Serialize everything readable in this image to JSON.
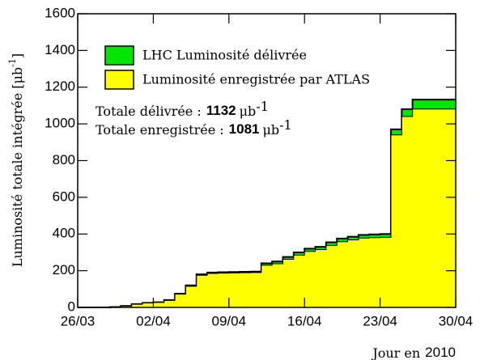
{
  "chart_data": {
    "type": "step-area",
    "ylabel": "Luminosité totale intégrée [μb",
    "ylabel_sup": "-1",
    "ylabel_end": "]",
    "xlabel": "Jour en",
    "xlabel_year": "2010",
    "x": [
      0,
      1,
      2,
      3,
      4,
      5,
      6,
      7,
      8,
      9,
      10,
      11,
      12,
      13,
      14,
      15,
      16,
      17,
      18,
      19,
      20,
      21,
      22,
      23,
      24,
      25,
      26,
      27,
      28,
      29,
      30,
      31,
      32,
      33,
      34
    ],
    "xlim": [
      0,
      35
    ],
    "xticks": [
      {
        "value": 0,
        "label": "26/03"
      },
      {
        "value": 7,
        "label": "02/04"
      },
      {
        "value": 14,
        "label": "09/04"
      },
      {
        "value": 21,
        "label": "16/04"
      },
      {
        "value": 28,
        "label": "23/04"
      },
      {
        "value": 35,
        "label": "30/04"
      }
    ],
    "ylim": [
      0,
      1600
    ],
    "yticks": [
      0,
      200,
      400,
      600,
      800,
      1000,
      1200,
      1400,
      1600
    ],
    "series": [
      {
        "name": "LHC Luminosité délivrée",
        "color": "#00e600",
        "values": [
          0,
          0,
          0,
          2,
          8,
          18,
          25,
          28,
          40,
          75,
          120,
          180,
          190,
          192,
          193,
          194,
          195,
          240,
          250,
          275,
          300,
          320,
          330,
          355,
          375,
          385,
          395,
          398,
          400,
          970,
          1080,
          1132,
          1132,
          1132,
          1132
        ]
      },
      {
        "name": "Luminosité enregistrée par ATLAS",
        "color": "#ffff00",
        "values": [
          0,
          0,
          0,
          2,
          7,
          17,
          24,
          27,
          38,
          72,
          115,
          175,
          185,
          187,
          188,
          189,
          190,
          230,
          238,
          262,
          285,
          305,
          315,
          338,
          358,
          368,
          378,
          380,
          382,
          940,
          1040,
          1081,
          1081,
          1081,
          1081
        ]
      }
    ],
    "annotations": [
      {
        "text": "Totale délivrée :",
        "value": 1132,
        "unit": "μb",
        "sup": "-1"
      },
      {
        "text": "Totale enregistrée :",
        "value": 1081,
        "unit": "μb",
        "sup": "-1"
      }
    ]
  }
}
